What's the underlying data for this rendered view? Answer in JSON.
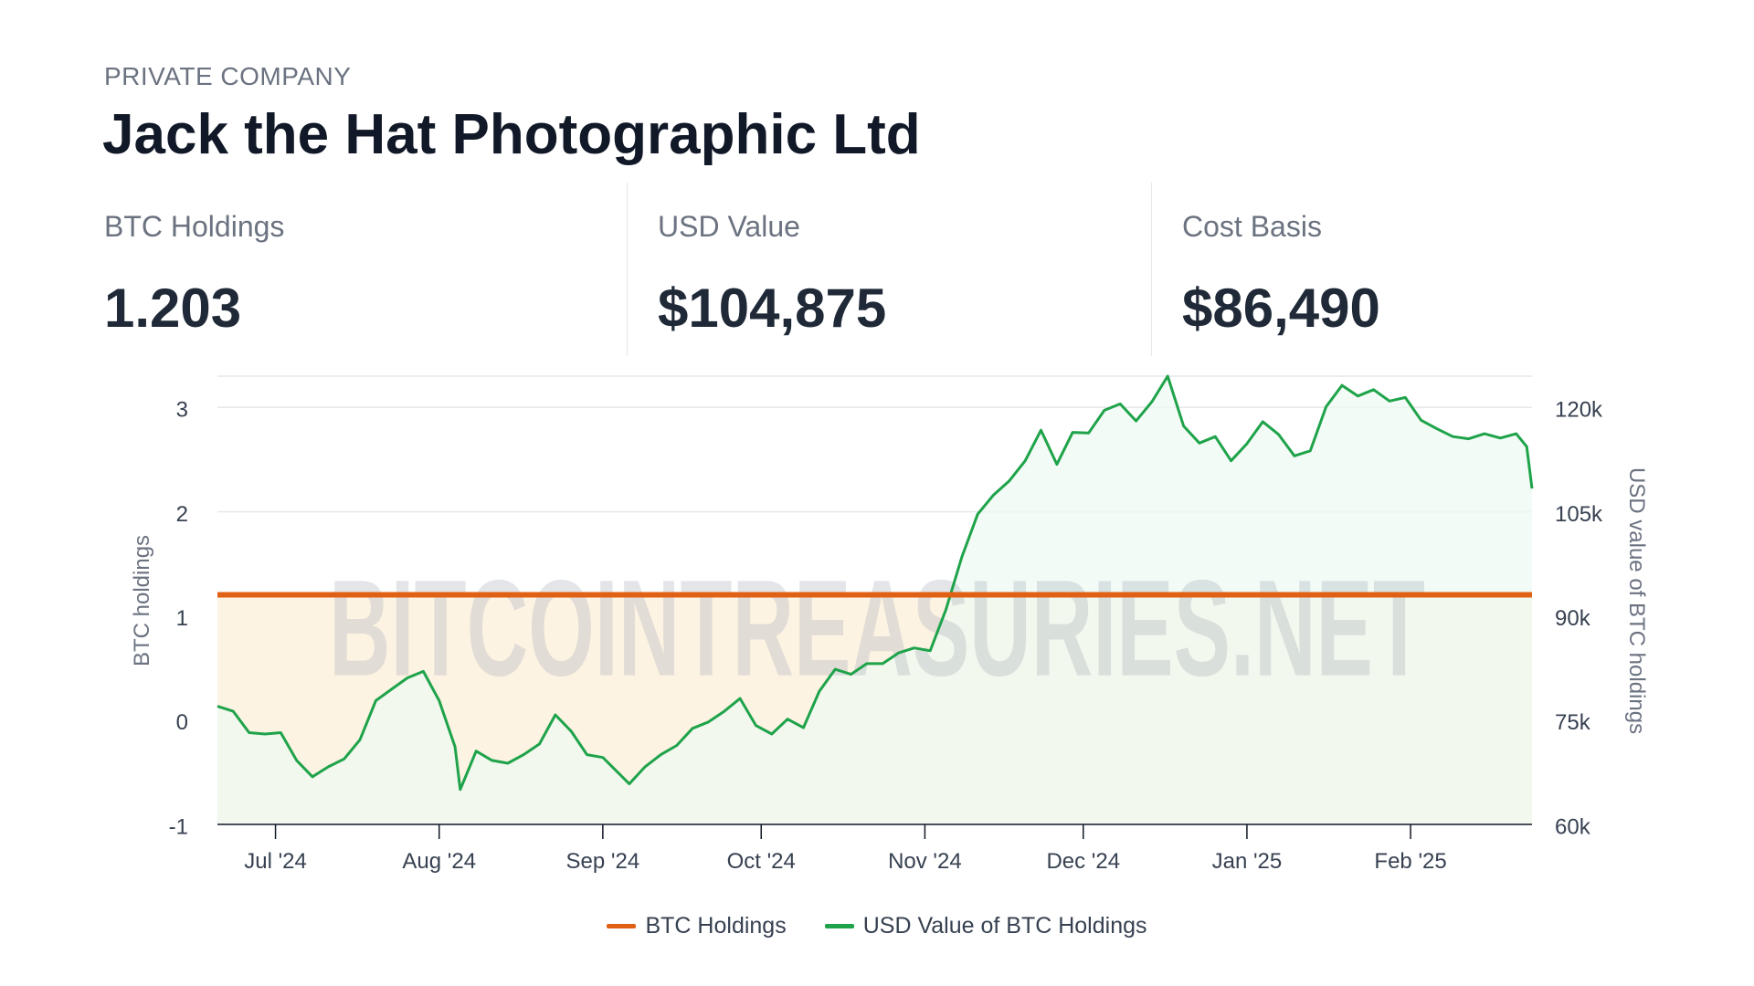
{
  "header": {
    "category": "PRIVATE COMPANY",
    "company_name": "Jack the Hat Photographic Ltd"
  },
  "stats": [
    {
      "label": "BTC Holdings",
      "value": "1.203"
    },
    {
      "label": "USD Value",
      "value": "$104,875"
    },
    {
      "label": "Cost Basis",
      "value": "$86,490"
    }
  ],
  "watermark": "BITCOINTREASURIES.NET",
  "colors": {
    "btc_line": "#e06014",
    "usd_line": "#1fa34a",
    "btc_fill": "#fdf3e3",
    "usd_fill": "#eefaf1",
    "grid": "#e5e7eb"
  },
  "legend": [
    "BTC Holdings",
    "USD Value of BTC Holdings"
  ],
  "chart_data": {
    "type": "line",
    "title": "",
    "xlabel": "",
    "ylabel": "BTC holdings",
    "y2label": "USD value of BTC holdings",
    "ylim": [
      -1,
      3.3
    ],
    "y2lim": [
      60000,
      123000
    ],
    "yticks": [
      "-1",
      "0",
      "1",
      "2",
      "3"
    ],
    "y2ticks": [
      "60k",
      "75k",
      "90k",
      "105k",
      "120k"
    ],
    "xlim": [
      "2024-06-20",
      "2025-02-24"
    ],
    "xticks": [
      {
        "date": "2024-07-01",
        "label": "Jul '24"
      },
      {
        "date": "2024-08-01",
        "label": "Aug '24"
      },
      {
        "date": "2024-09-01",
        "label": "Sep '24"
      },
      {
        "date": "2024-10-01",
        "label": "Oct '24"
      },
      {
        "date": "2024-11-01",
        "label": "Nov '24"
      },
      {
        "date": "2024-12-01",
        "label": "Dec '24"
      },
      {
        "date": "2025-01-01",
        "label": "Jan '25"
      },
      {
        "date": "2025-02-01",
        "label": "Feb '25"
      }
    ],
    "grid": true,
    "legend_position": "bottom",
    "series": [
      {
        "name": "BTC Holdings",
        "axis": "left",
        "points": [
          [
            "2024-06-20",
            1.203
          ],
          [
            "2025-02-24",
            1.203
          ]
        ]
      },
      {
        "name": "USD Value of BTC Holdings",
        "axis": "right",
        "points": [
          [
            "2024-06-20",
            76600
          ],
          [
            "2024-06-23",
            75900
          ],
          [
            "2024-06-26",
            72900
          ],
          [
            "2024-06-29",
            72700
          ],
          [
            "2024-07-02",
            72900
          ],
          [
            "2024-07-05",
            69000
          ],
          [
            "2024-07-08",
            66700
          ],
          [
            "2024-07-11",
            68100
          ],
          [
            "2024-07-14",
            69200
          ],
          [
            "2024-07-17",
            71900
          ],
          [
            "2024-07-20",
            77400
          ],
          [
            "2024-07-23",
            79000
          ],
          [
            "2024-07-26",
            80600
          ],
          [
            "2024-07-29",
            81500
          ],
          [
            "2024-08-01",
            77400
          ],
          [
            "2024-08-04",
            70900
          ],
          [
            "2024-08-05",
            64900
          ],
          [
            "2024-08-08",
            70300
          ],
          [
            "2024-08-11",
            69000
          ],
          [
            "2024-08-14",
            68600
          ],
          [
            "2024-08-17",
            69800
          ],
          [
            "2024-08-20",
            71300
          ],
          [
            "2024-08-23",
            75400
          ],
          [
            "2024-08-26",
            73100
          ],
          [
            "2024-08-29",
            69800
          ],
          [
            "2024-09-01",
            69400
          ],
          [
            "2024-09-04",
            67200
          ],
          [
            "2024-09-06",
            65700
          ],
          [
            "2024-09-09",
            68100
          ],
          [
            "2024-09-12",
            69800
          ],
          [
            "2024-09-15",
            71100
          ],
          [
            "2024-09-18",
            73500
          ],
          [
            "2024-09-21",
            74400
          ],
          [
            "2024-09-24",
            75900
          ],
          [
            "2024-09-27",
            77700
          ],
          [
            "2024-09-30",
            73900
          ],
          [
            "2024-10-03",
            72700
          ],
          [
            "2024-10-06",
            74800
          ],
          [
            "2024-10-09",
            73600
          ],
          [
            "2024-10-12",
            78700
          ],
          [
            "2024-10-15",
            81800
          ],
          [
            "2024-10-18",
            81100
          ],
          [
            "2024-10-21",
            82600
          ],
          [
            "2024-10-24",
            82600
          ],
          [
            "2024-10-27",
            84100
          ],
          [
            "2024-10-30",
            84800
          ],
          [
            "2024-11-02",
            84400
          ],
          [
            "2024-11-05",
            90200
          ],
          [
            "2024-11-08",
            97600
          ],
          [
            "2024-11-11",
            103600
          ],
          [
            "2024-11-14",
            106300
          ],
          [
            "2024-11-17",
            108300
          ],
          [
            "2024-11-20",
            111100
          ],
          [
            "2024-11-23",
            115400
          ],
          [
            "2024-11-26",
            110600
          ],
          [
            "2024-11-29",
            115100
          ],
          [
            "2024-12-02",
            115000
          ],
          [
            "2024-12-05",
            118200
          ],
          [
            "2024-12-08",
            119100
          ],
          [
            "2024-12-11",
            116700
          ],
          [
            "2024-12-14",
            119400
          ],
          [
            "2024-12-17",
            123000
          ],
          [
            "2024-12-20",
            116000
          ],
          [
            "2024-12-23",
            113600
          ],
          [
            "2024-12-26",
            114500
          ],
          [
            "2024-12-29",
            111100
          ],
          [
            "2025-01-01",
            113500
          ],
          [
            "2025-01-04",
            116600
          ],
          [
            "2025-01-07",
            114800
          ],
          [
            "2025-01-10",
            111800
          ],
          [
            "2025-01-13",
            112500
          ],
          [
            "2025-01-16",
            118700
          ],
          [
            "2025-01-19",
            121700
          ],
          [
            "2025-01-22",
            120200
          ],
          [
            "2025-01-25",
            121100
          ],
          [
            "2025-01-28",
            119500
          ],
          [
            "2025-01-31",
            120000
          ],
          [
            "2025-02-03",
            116800
          ],
          [
            "2025-02-06",
            115600
          ],
          [
            "2025-02-09",
            114500
          ],
          [
            "2025-02-12",
            114200
          ],
          [
            "2025-02-15",
            114900
          ],
          [
            "2025-02-18",
            114300
          ],
          [
            "2025-02-21",
            114900
          ],
          [
            "2025-02-23",
            113100
          ],
          [
            "2025-02-24",
            107200
          ]
        ]
      }
    ]
  }
}
